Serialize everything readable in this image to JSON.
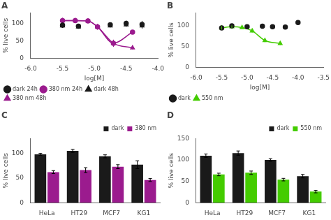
{
  "chart_data": [
    {
      "type": "scatter",
      "title": "A",
      "xlabel": "log[M]",
      "ylabel": "% live cells",
      "xlim": [
        -6.0,
        -4.0
      ],
      "ylim": [
        0,
        130
      ],
      "xticks": [
        {
          "value": -6.0,
          "label": "-6.0"
        },
        -5.5,
        {
          "value": -5.0,
          "label": "-5.0"
        },
        -4.5,
        {
          "value": -4.0,
          "label": "-4.0"
        }
      ],
      "yticks": [
        0,
        50,
        100
      ],
      "grid": false,
      "legend": "lower left",
      "series": [
        {
          "name": "dark 24h",
          "color": "#1a1a1a",
          "marker": "circle",
          "x": [
            -5.5,
            -5.25,
            -4.75,
            -4.5,
            -4.25
          ],
          "values": [
            95,
            92,
            96,
            100,
            97
          ],
          "errors": [
            8,
            5,
            5,
            8,
            10
          ]
        },
        {
          "name": "380 nm 24h",
          "color": "#9b1b8e",
          "marker": "circle",
          "line_style": "solid",
          "x": [
            -5.5,
            -5.3,
            -5.1,
            -4.95,
            -4.7,
            -4.4
          ],
          "values": [
            108,
            108,
            107,
            90,
            43,
            75
          ],
          "errors": [
            5,
            4,
            6,
            8,
            10,
            5
          ]
        },
        {
          "name": "dark 48h",
          "color": "#1a1a1a",
          "marker": "triangle",
          "x": [
            -5.5,
            -5.25,
            -4.75,
            -4.5,
            -4.25
          ],
          "values": [
            93,
            90,
            93,
            96,
            93
          ],
          "errors": [
            5,
            4,
            4,
            6,
            8
          ]
        },
        {
          "name": "380 nm 48h",
          "color": "#9b1b8e",
          "marker": "triangle",
          "line_style": "solid",
          "x": [
            -5.5,
            -5.3,
            -5.1,
            -4.95,
            -4.7,
            -4.4
          ],
          "values": [
            108,
            108,
            107,
            90,
            43,
            30
          ],
          "errors": [
            5,
            4,
            6,
            8,
            10,
            5
          ]
        }
      ]
    },
    {
      "type": "scatter",
      "title": "B",
      "xlabel": "log[M]",
      "ylabel": "% live cells",
      "xlim": [
        -6.0,
        -3.5
      ],
      "ylim": [
        0,
        130
      ],
      "xticks": [
        {
          "value": -6.0,
          "label": "-6.0"
        },
        -5.5,
        {
          "value": -5.0,
          "label": "-5.0"
        },
        -4.5,
        {
          "value": -4.0,
          "label": "-4.0"
        },
        -3.5
      ],
      "yticks": [
        0,
        50,
        100
      ],
      "grid": false,
      "legend": "lower left",
      "series": [
        {
          "name": "dark",
          "color": "#1a1a1a",
          "marker": "circle",
          "x": [
            -5.5,
            -5.3,
            -5.0,
            -4.7,
            -4.5,
            -4.25,
            -4.0
          ],
          "values": [
            94,
            99,
            97,
            98,
            97,
            96,
            107
          ],
          "errors": [
            3,
            2,
            2,
            3,
            2,
            3,
            5
          ]
        },
        {
          "name": "550 nm",
          "color": "#44cc00",
          "marker": "triangle",
          "line_style": "solid",
          "x": [
            -5.5,
            -5.3,
            -5.1,
            -4.9,
            -4.65,
            -4.35
          ],
          "values": [
            94,
            97,
            95,
            87,
            64,
            57
          ],
          "errors": [
            4,
            3,
            3,
            4,
            4,
            4
          ]
        }
      ]
    },
    {
      "type": "bar",
      "title": "C",
      "ylabel": "% live cells",
      "categories": [
        "HeLa",
        "HT29",
        "MCF7",
        "KG1"
      ],
      "ylim": [
        0,
        130
      ],
      "yticks": [
        0,
        50,
        100
      ],
      "grid": false,
      "legend": "upper right",
      "series": [
        {
          "name": "dark",
          "color": "#1a1a1a",
          "values": [
            98,
            105,
            94,
            77
          ],
          "errors": [
            2,
            3,
            3,
            8
          ]
        },
        {
          "name": "380 nm",
          "color": "#9b1b8e",
          "values": [
            62,
            66,
            73,
            46
          ],
          "errors": [
            3,
            5,
            4,
            3
          ]
        }
      ]
    },
    {
      "type": "bar",
      "title": "D",
      "ylabel": "% live cells",
      "categories": [
        "HeLa",
        "HT29",
        "MCF7",
        "KG1"
      ],
      "ylim": [
        0,
        150
      ],
      "yticks": [
        0,
        50,
        100,
        150
      ],
      "grid": false,
      "legend": "upper right",
      "series": [
        {
          "name": "dark",
          "color": "#1a1a1a",
          "values": [
            110,
            116,
            100,
            62
          ],
          "errors": [
            4,
            5,
            3,
            4
          ]
        },
        {
          "name": "550 nm",
          "color": "#44cc00",
          "values": [
            66,
            70,
            54,
            26
          ],
          "errors": [
            3,
            4,
            3,
            3
          ]
        }
      ]
    }
  ]
}
